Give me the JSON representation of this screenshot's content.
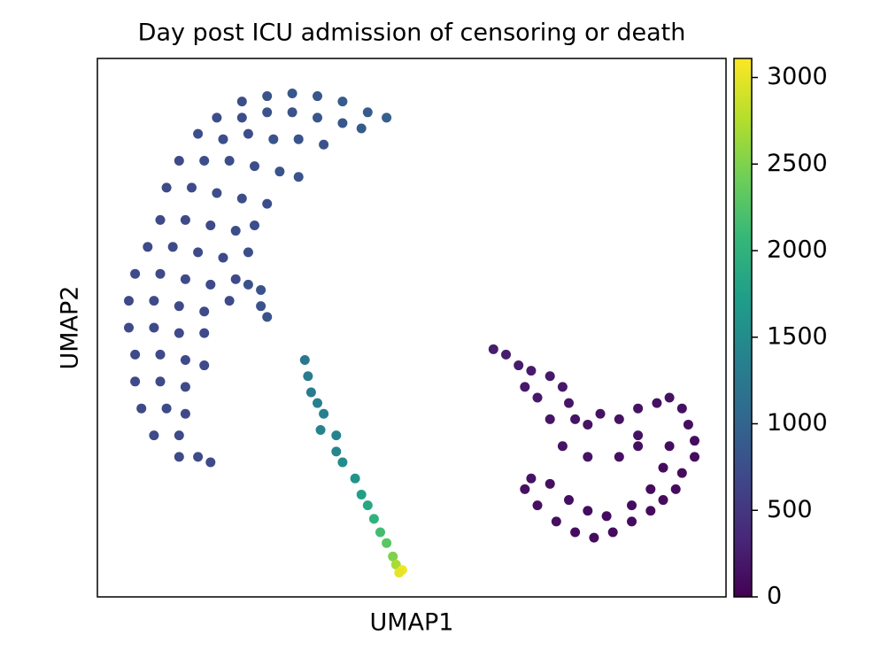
{
  "chart_data": {
    "type": "scatter",
    "title": "Day post ICU admission of censoring or death",
    "xlabel": "UMAP1",
    "ylabel": "UMAP2",
    "xlim": [
      0,
      10
    ],
    "ylim": [
      0,
      10
    ],
    "clim": [
      0,
      3110
    ],
    "cticks": [
      0,
      500,
      1000,
      1500,
      2000,
      2500,
      3000
    ],
    "colorscale": [
      "#440154",
      "#482878",
      "#3e4989",
      "#31688e",
      "#26828e",
      "#1f9e89",
      "#35b779",
      "#6ece58",
      "#b5de2b",
      "#fde725"
    ],
    "x": [
      2.3,
      2.7,
      3.1,
      3.5,
      3.9,
      4.3,
      4.6,
      1.9,
      2.3,
      2.7,
      3.1,
      3.5,
      3.9,
      4.2,
      1.6,
      2.0,
      2.4,
      2.8,
      3.2,
      3.6,
      1.3,
      1.7,
      2.1,
      2.5,
      2.9,
      3.2,
      1.1,
      1.5,
      1.9,
      2.3,
      2.7,
      1.0,
      1.4,
      1.8,
      2.2,
      2.5,
      0.8,
      1.2,
      1.6,
      2.0,
      2.4,
      0.6,
      1.0,
      1.4,
      1.8,
      2.2,
      0.5,
      0.9,
      1.3,
      1.7,
      2.1,
      0.5,
      0.9,
      1.3,
      1.7,
      0.6,
      1.0,
      1.4,
      1.7,
      0.6,
      1.0,
      1.4,
      0.7,
      1.1,
      1.4,
      0.9,
      1.3,
      1.3,
      1.6,
      1.8,
      2.4,
      2.6,
      2.6,
      2.7,
      3.3,
      3.35,
      3.4,
      3.5,
      3.6,
      3.55,
      3.8,
      3.8,
      3.9,
      4.1,
      4.2,
      4.3,
      4.4,
      4.5,
      4.6,
      4.7,
      4.75,
      4.85,
      4.8,
      6.3,
      6.5,
      6.7,
      6.9,
      7.2,
      7.4,
      7.5,
      7.6,
      7.8,
      8.0,
      8.3,
      8.6,
      8.9,
      9.1,
      9.3,
      9.4,
      9.5,
      9.5,
      9.3,
      9.2,
      9.0,
      8.8,
      8.5,
      8.2,
      7.9,
      7.6,
      7.3,
      7.0,
      6.8,
      6.9,
      7.2,
      7.5,
      7.8,
      8.1,
      8.5,
      8.8,
      9.0,
      9.1,
      8.6,
      8.3,
      8.6,
      7.8,
      7.4,
      7.2,
      7.0,
      6.8
    ],
    "y": [
      9.2,
      9.3,
      9.35,
      9.3,
      9.2,
      9.0,
      8.9,
      8.9,
      8.9,
      9.0,
      9.0,
      8.9,
      8.8,
      8.7,
      8.6,
      8.5,
      8.6,
      8.5,
      8.5,
      8.4,
      8.1,
      8.1,
      8.1,
      8.0,
      7.9,
      7.8,
      7.6,
      7.6,
      7.5,
      7.4,
      7.3,
      7.0,
      7.0,
      6.9,
      6.8,
      6.9,
      6.5,
      6.5,
      6.4,
      6.3,
      6.4,
      6.0,
      6.0,
      5.9,
      5.8,
      5.9,
      5.5,
      5.5,
      5.4,
      5.3,
      5.5,
      5.0,
      5.0,
      4.9,
      4.9,
      4.5,
      4.5,
      4.4,
      4.3,
      4.0,
      4.0,
      3.9,
      3.5,
      3.5,
      3.4,
      3.0,
      3.0,
      2.6,
      2.6,
      2.5,
      5.8,
      5.7,
      5.4,
      5.2,
      4.4,
      4.1,
      3.8,
      3.6,
      3.4,
      3.1,
      3.0,
      2.7,
      2.5,
      2.2,
      1.9,
      1.7,
      1.45,
      1.2,
      1.0,
      0.75,
      0.6,
      0.5,
      0.45,
      4.6,
      4.5,
      4.3,
      4.2,
      4.1,
      3.9,
      3.6,
      3.3,
      3.2,
      3.4,
      3.3,
      3.5,
      3.6,
      3.7,
      3.5,
      3.2,
      2.9,
      2.6,
      2.3,
      2.0,
      1.8,
      1.6,
      1.4,
      1.2,
      1.1,
      1.2,
      1.4,
      1.7,
      2.0,
      2.2,
      2.1,
      1.8,
      1.6,
      1.5,
      1.7,
      2.0,
      2.4,
      2.8,
      2.8,
      2.6,
      3.0,
      2.6,
      2.8,
      3.3,
      3.7,
      3.9
    ],
    "c": [
      750,
      800,
      850,
      850,
      900,
      900,
      950,
      750,
      750,
      800,
      800,
      850,
      850,
      900,
      750,
      750,
      750,
      800,
      800,
      800,
      700,
      750,
      750,
      750,
      800,
      800,
      700,
      700,
      750,
      750,
      750,
      700,
      700,
      700,
      750,
      750,
      700,
      700,
      700,
      700,
      750,
      700,
      700,
      700,
      700,
      700,
      700,
      700,
      700,
      700,
      700,
      700,
      700,
      700,
      700,
      700,
      700,
      700,
      700,
      700,
      700,
      700,
      700,
      700,
      700,
      700,
      700,
      700,
      700,
      700,
      800,
      800,
      800,
      800,
      1250,
      1300,
      1300,
      1350,
      1350,
      1400,
      1400,
      1450,
      1500,
      1600,
      1750,
      1850,
      2000,
      2150,
      2300,
      2500,
      2700,
      3050,
      3000,
      250,
      250,
      230,
      220,
      200,
      200,
      180,
      170,
      160,
      150,
      150,
      150,
      140,
      140,
      130,
      120,
      110,
      100,
      100,
      100,
      100,
      100,
      100,
      100,
      100,
      110,
      120,
      130,
      140,
      150,
      130,
      120,
      110,
      100,
      100,
      100,
      100,
      110,
      120,
      130,
      140,
      150,
      160,
      180,
      200,
      210
    ]
  }
}
